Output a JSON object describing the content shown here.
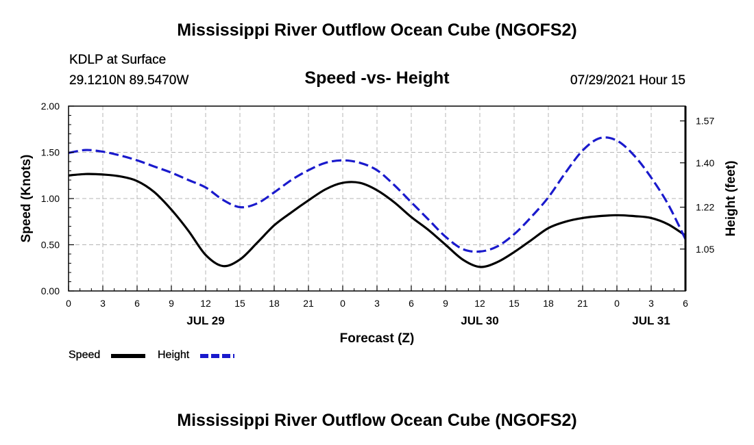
{
  "header": {
    "title": "Mississippi River Outflow Ocean Cube (NGOFS2)",
    "station": "KDLP at Surface",
    "coords": "29.1210N  89.5470W",
    "plot_title": "Speed -vs- Height",
    "timestamp": "07/29/2021 Hour 15"
  },
  "footer": {
    "title": "Mississippi River Outflow Ocean Cube (NGOFS2)"
  },
  "legend": {
    "speed_label": "Speed",
    "height_label": "Height"
  },
  "colors": {
    "speed": "#000000",
    "height": "#1a1acc",
    "grid": "#b4b4b4"
  },
  "chart_data": {
    "type": "line",
    "title": "Speed -vs- Height",
    "xlabel": "Forecast (Z)",
    "ylabel_left": "Speed (Knots)",
    "ylabel_right": "Height (feet)",
    "x_range_hours": [
      0,
      54
    ],
    "xticks": [
      {
        "h": 0,
        "label": "0"
      },
      {
        "h": 3,
        "label": "3"
      },
      {
        "h": 6,
        "label": "6"
      },
      {
        "h": 9,
        "label": "9"
      },
      {
        "h": 12,
        "label": "12"
      },
      {
        "h": 15,
        "label": "15"
      },
      {
        "h": 18,
        "label": "18"
      },
      {
        "h": 21,
        "label": "21"
      },
      {
        "h": 24,
        "label": "0"
      },
      {
        "h": 27,
        "label": "3"
      },
      {
        "h": 30,
        "label": "6"
      },
      {
        "h": 33,
        "label": "9"
      },
      {
        "h": 36,
        "label": "12"
      },
      {
        "h": 39,
        "label": "15"
      },
      {
        "h": 42,
        "label": "18"
      },
      {
        "h": 45,
        "label": "21"
      },
      {
        "h": 48,
        "label": "0"
      },
      {
        "h": 51,
        "label": "3"
      },
      {
        "h": 54,
        "label": "6"
      }
    ],
    "date_labels": [
      {
        "h": 12,
        "label": "JUL 29"
      },
      {
        "h": 36,
        "label": "JUL 30"
      },
      {
        "h": 51,
        "label": "JUL 31"
      }
    ],
    "ylim_left": [
      0,
      2
    ],
    "yticks_left": [
      {
        "v": 0,
        "label": "0.00"
      },
      {
        "v": 0.5,
        "label": "0.50"
      },
      {
        "v": 1.0,
        "label": "1.00"
      },
      {
        "v": 1.5,
        "label": "1.50"
      },
      {
        "v": 2.0,
        "label": "2.00"
      }
    ],
    "ylim_right": [
      0.88,
      1.63
    ],
    "yticks_right": [
      {
        "v": 1.05,
        "label": "1.05"
      },
      {
        "v": 1.22,
        "label": "1.22"
      },
      {
        "v": 1.4,
        "label": "1.40"
      },
      {
        "v": 1.57,
        "label": "1.57"
      }
    ],
    "series": [
      {
        "name": "Speed",
        "axis": "left",
        "style": "solid",
        "points": [
          [
            0,
            1.25
          ],
          [
            1.5,
            1.265
          ],
          [
            3,
            1.26
          ],
          [
            4.5,
            1.24
          ],
          [
            6,
            1.19
          ],
          [
            7.5,
            1.07
          ],
          [
            9,
            0.88
          ],
          [
            10.5,
            0.65
          ],
          [
            12,
            0.39
          ],
          [
            13.5,
            0.27
          ],
          [
            15,
            0.34
          ],
          [
            16.5,
            0.52
          ],
          [
            18,
            0.71
          ],
          [
            19.5,
            0.85
          ],
          [
            21,
            0.98
          ],
          [
            22.5,
            1.1
          ],
          [
            24,
            1.17
          ],
          [
            25.5,
            1.17
          ],
          [
            27,
            1.09
          ],
          [
            28.5,
            0.96
          ],
          [
            30,
            0.8
          ],
          [
            31.5,
            0.66
          ],
          [
            33,
            0.5
          ],
          [
            34.5,
            0.34
          ],
          [
            36,
            0.26
          ],
          [
            37.5,
            0.31
          ],
          [
            39,
            0.42
          ],
          [
            40.5,
            0.55
          ],
          [
            42,
            0.68
          ],
          [
            43.5,
            0.75
          ],
          [
            45,
            0.79
          ],
          [
            46.5,
            0.81
          ],
          [
            48,
            0.82
          ],
          [
            49.5,
            0.81
          ],
          [
            51,
            0.79
          ],
          [
            52.5,
            0.72
          ],
          [
            54,
            0.6
          ]
        ]
      },
      {
        "name": "Height",
        "axis": "right",
        "style": "dashed",
        "points": [
          [
            0,
            1.44
          ],
          [
            1.5,
            1.452
          ],
          [
            3,
            1.445
          ],
          [
            4.5,
            1.43
          ],
          [
            6,
            1.41
          ],
          [
            7.5,
            1.385
          ],
          [
            9,
            1.36
          ],
          [
            10.5,
            1.33
          ],
          [
            12,
            1.3
          ],
          [
            13.5,
            1.25
          ],
          [
            15,
            1.22
          ],
          [
            16.5,
            1.235
          ],
          [
            18,
            1.28
          ],
          [
            19.5,
            1.33
          ],
          [
            21,
            1.37
          ],
          [
            22.5,
            1.4
          ],
          [
            24,
            1.41
          ],
          [
            25.5,
            1.4
          ],
          [
            27,
            1.37
          ],
          [
            28.5,
            1.31
          ],
          [
            30,
            1.24
          ],
          [
            31.5,
            1.17
          ],
          [
            33,
            1.1
          ],
          [
            34.5,
            1.05
          ],
          [
            36,
            1.04
          ],
          [
            37.5,
            1.06
          ],
          [
            39,
            1.11
          ],
          [
            40.5,
            1.18
          ],
          [
            42,
            1.26
          ],
          [
            43.5,
            1.36
          ],
          [
            45,
            1.45
          ],
          [
            46.5,
            1.5
          ],
          [
            48,
            1.49
          ],
          [
            49.5,
            1.43
          ],
          [
            51,
            1.34
          ],
          [
            52.5,
            1.23
          ],
          [
            54,
            1.09
          ]
        ]
      }
    ]
  }
}
